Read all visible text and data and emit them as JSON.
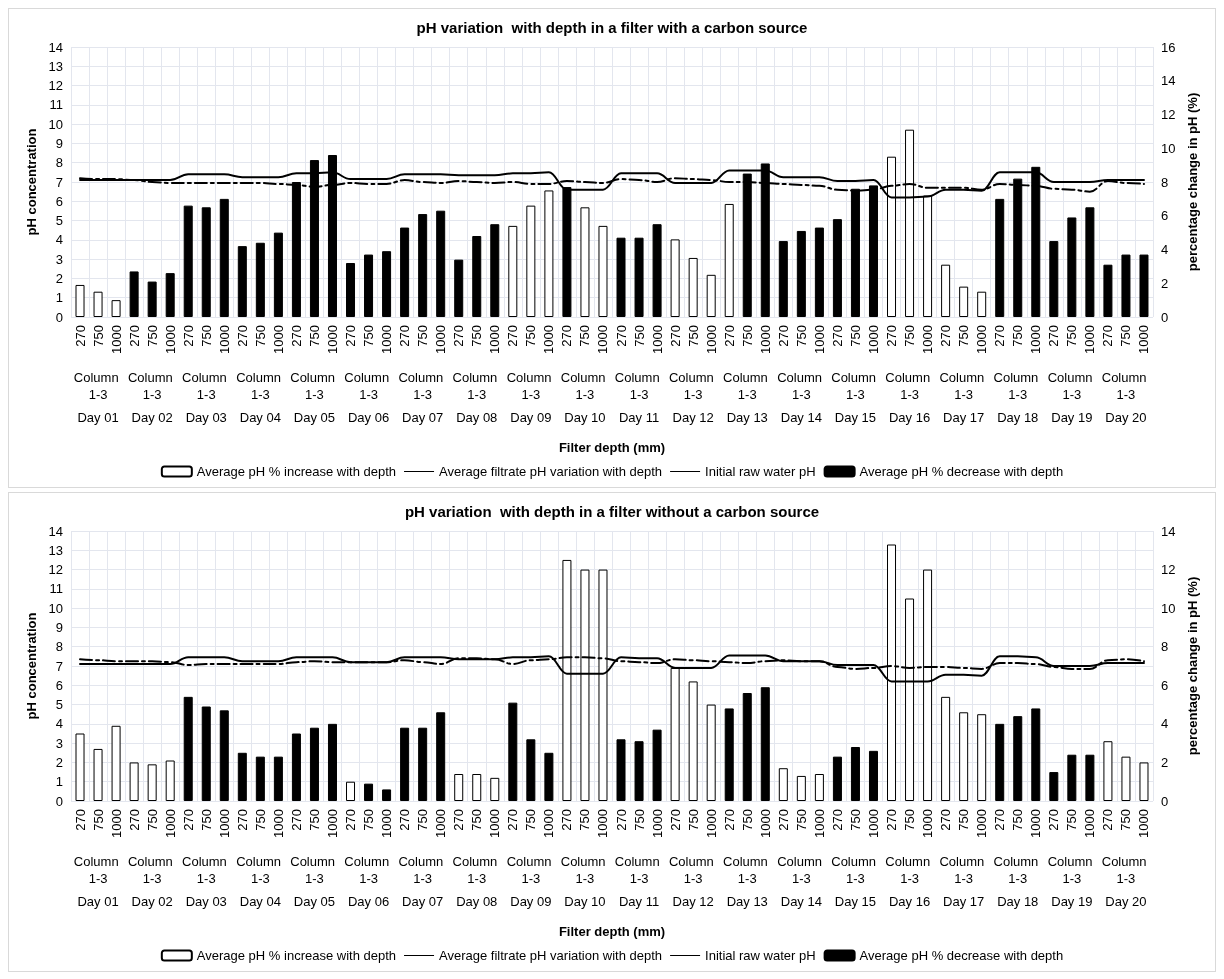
{
  "chart_data": [
    {
      "type": "bar",
      "title": "pH variation  with depth in a filter with a carbon source",
      "xlabel": "Filter depth (mm)",
      "ylabel": "pH concentration",
      "y2label": "percentage change in pH (%)",
      "categories": [
        "270",
        "750",
        "1000",
        "270",
        "750",
        "1000",
        "270",
        "750",
        "1000",
        "270",
        "750",
        "1000",
        "270",
        "750",
        "1000",
        "270",
        "750",
        "1000",
        "270",
        "750",
        "1000",
        "270",
        "750",
        "1000",
        "270",
        "750",
        "1000",
        "270",
        "750",
        "1000",
        "270",
        "750",
        "1000",
        "270",
        "750",
        "1000",
        "270",
        "750",
        "1000",
        "270",
        "750",
        "1000",
        "270",
        "750",
        "1000",
        "270",
        "750",
        "1000",
        "270",
        "750",
        "1000",
        "270",
        "750",
        "1000",
        "270",
        "750",
        "1000",
        "270",
        "750",
        "1000"
      ],
      "annotations": [
        "Column 1-3",
        "Column 1-3",
        "Column 1-3",
        "Column 1-3",
        "Column 1-3",
        "Column 1-3",
        "Column 1-3",
        "Column 1-3",
        "Column 1-3",
        "Column 1-3",
        "Column 1-3",
        "Column 1-3",
        "Column 1-3",
        "Column 1-3",
        "Column 1-3",
        "Column 1-3",
        "Column 1-3",
        "Column 1-3",
        "Column 1-3",
        "Column 1-3",
        "Day 01",
        "Day 02",
        "Day 03",
        "Day 04",
        "Day 05",
        "Day 06",
        "Day 07",
        "Day 08",
        "Day 09",
        "Day 10",
        "Day 11",
        "Day 12",
        "Day 13",
        "Day 14",
        "Day 15",
        "Day 16",
        "Day 17",
        "Day 18",
        "Day 19",
        "Day 20"
      ],
      "series": [
        {
          "name": "Average pH % increase with depth",
          "type": "bar",
          "axis": "y2",
          "color": "#ffffff",
          "values": [
            1.9,
            1.5,
            1.0,
            null,
            null,
            null,
            null,
            null,
            null,
            null,
            null,
            null,
            null,
            null,
            null,
            null,
            null,
            null,
            null,
            null,
            null,
            null,
            null,
            null,
            5.4,
            6.6,
            7.5,
            null,
            6.5,
            5.4,
            null,
            null,
            null,
            4.6,
            3.5,
            2.5,
            6.7,
            null,
            null,
            null,
            null,
            null,
            null,
            null,
            null,
            9.5,
            11.1,
            7.2,
            3.1,
            1.8,
            1.5,
            null,
            null,
            null,
            null,
            null,
            null,
            null,
            null,
            null
          ]
        },
        {
          "name": "Average filtrate pH variation with depth",
          "type": "line",
          "line_style": "dashed",
          "color": "#000000",
          "values": [
            7.2,
            7.15,
            7.15,
            7.1,
            7.0,
            6.95,
            6.95,
            6.95,
            6.95,
            6.95,
            6.95,
            6.9,
            6.85,
            6.75,
            6.85,
            6.95,
            6.9,
            6.9,
            7.1,
            7.0,
            6.95,
            7.05,
            7.0,
            6.95,
            7.0,
            6.9,
            6.9,
            7.05,
            7.0,
            6.95,
            7.15,
            7.1,
            7.0,
            7.2,
            7.15,
            7.1,
            7.0,
            7.0,
            6.95,
            6.9,
            6.85,
            6.8,
            6.6,
            6.55,
            6.6,
            6.8,
            6.9,
            6.7,
            6.7,
            6.7,
            6.6,
            6.9,
            6.85,
            6.8,
            6.65,
            6.6,
            6.5,
            7.05,
            6.95,
            6.9
          ]
        },
        {
          "name": "Initial raw water pH",
          "type": "line",
          "line_style": "solid",
          "color": "#000000",
          "values": [
            7.1,
            7.1,
            7.1,
            7.1,
            7.1,
            7.1,
            7.4,
            7.4,
            7.4,
            7.25,
            7.25,
            7.25,
            7.45,
            7.45,
            7.5,
            7.15,
            7.15,
            7.15,
            7.4,
            7.4,
            7.4,
            7.35,
            7.35,
            7.35,
            7.45,
            7.45,
            7.5,
            6.6,
            6.6,
            6.6,
            7.45,
            7.45,
            7.45,
            6.95,
            6.95,
            6.95,
            7.6,
            7.6,
            7.6,
            7.25,
            7.25,
            7.25,
            7.05,
            7.05,
            7.1,
            6.2,
            6.2,
            6.25,
            6.6,
            6.6,
            6.55,
            7.5,
            7.5,
            7.5,
            7.0,
            7.0,
            7.0,
            7.1,
            7.1,
            7.1
          ]
        },
        {
          "name": "Average pH % decrease with depth",
          "type": "bar",
          "axis": "y2",
          "color": "#000000",
          "values": [
            null,
            null,
            null,
            2.7,
            2.1,
            2.6,
            6.6,
            6.5,
            7.0,
            4.2,
            4.4,
            5.0,
            8.0,
            9.3,
            9.6,
            3.2,
            3.7,
            3.9,
            5.3,
            6.1,
            6.3,
            3.4,
            4.8,
            5.5,
            null,
            null,
            null,
            7.7,
            null,
            null,
            4.7,
            4.7,
            5.5,
            null,
            null,
            null,
            null,
            8.5,
            9.1,
            4.5,
            5.1,
            5.3,
            5.8,
            7.6,
            7.8,
            null,
            null,
            null,
            null,
            null,
            null,
            7.0,
            8.2,
            8.9,
            4.5,
            5.9,
            6.5,
            3.1,
            3.7,
            3.7
          ]
        }
      ],
      "ylim": [
        0,
        14
      ],
      "yticks": [
        0,
        1,
        2,
        3,
        4,
        5,
        6,
        7,
        8,
        9,
        10,
        11,
        12,
        13,
        14
      ],
      "y2lim": [
        0,
        16
      ],
      "y2ticks": [
        0,
        2,
        4,
        6,
        8,
        10,
        12,
        14,
        16
      ],
      "grid": true,
      "legend": "bottom",
      "marker": "none"
    },
    {
      "type": "bar",
      "title": "pH variation  with depth in a filter without a carbon source",
      "xlabel": "Filter depth (mm)",
      "ylabel": "pH concentration",
      "y2label": "percentage change in pH (%)",
      "categories": [
        "270",
        "750",
        "1000",
        "270",
        "750",
        "1000",
        "270",
        "750",
        "1000",
        "270",
        "750",
        "1000",
        "270",
        "750",
        "1000",
        "270",
        "750",
        "1000",
        "270",
        "750",
        "1000",
        "270",
        "750",
        "1000",
        "270",
        "750",
        "1000",
        "270",
        "750",
        "1000",
        "270",
        "750",
        "1000",
        "270",
        "750",
        "1000",
        "270",
        "750",
        "1000",
        "270",
        "750",
        "1000",
        "270",
        "750",
        "1000",
        "270",
        "750",
        "1000",
        "270",
        "750",
        "1000",
        "270",
        "750",
        "1000",
        "270",
        "750",
        "1000",
        "270",
        "750",
        "1000"
      ],
      "annotations": [
        "Column 1-3",
        "Column 1-3",
        "Column 1-3",
        "Column 1-3",
        "Column 1-3",
        "Column 1-3",
        "Column 1-3",
        "Column 1-3",
        "Column 1-3",
        "Column 1-3",
        "Column 1-3",
        "Column 1-3",
        "Column 1-3",
        "Column 1-3",
        "Column 1-3",
        "Column 1-3",
        "Column 1-3",
        "Column 1-3",
        "Column 1-3",
        "Column 1-3",
        "Day 01",
        "Day 02",
        "Day 03",
        "Day 04",
        "Day 05",
        "Day 06",
        "Day 07",
        "Day 08",
        "Day 09",
        "Day 10",
        "Day 11",
        "Day 12",
        "Day 13",
        "Day 14",
        "Day 15",
        "Day 16",
        "Day 17",
        "Day 18",
        "Day 19",
        "Day 20"
      ],
      "series": [
        {
          "name": "Average pH % increase with depth",
          "type": "bar",
          "axis": "y2",
          "color": "#ffffff",
          "values": [
            3.5,
            2.7,
            3.9,
            2.0,
            1.9,
            2.1,
            null,
            null,
            null,
            null,
            null,
            null,
            null,
            null,
            null,
            1.0,
            null,
            null,
            null,
            null,
            null,
            1.4,
            1.4,
            1.2,
            null,
            null,
            null,
            12.5,
            12.0,
            12.0,
            null,
            null,
            null,
            6.9,
            6.2,
            5.0,
            null,
            null,
            null,
            1.7,
            1.3,
            1.4,
            null,
            null,
            null,
            13.3,
            10.5,
            12.0,
            5.4,
            4.6,
            4.5,
            null,
            null,
            null,
            null,
            null,
            null,
            3.1,
            2.3,
            2.0
          ]
        },
        {
          "name": "Average filtrate pH variation with depth",
          "type": "line",
          "line_style": "dashed",
          "color": "#000000",
          "values": [
            7.35,
            7.3,
            7.25,
            7.25,
            7.25,
            7.2,
            7.05,
            7.1,
            7.1,
            7.1,
            7.1,
            7.1,
            7.2,
            7.25,
            7.2,
            7.2,
            7.2,
            7.2,
            7.3,
            7.2,
            7.1,
            7.4,
            7.4,
            7.35,
            7.1,
            7.3,
            7.35,
            7.45,
            7.45,
            7.4,
            7.25,
            7.2,
            7.15,
            7.35,
            7.3,
            7.25,
            7.2,
            7.15,
            7.25,
            7.3,
            7.25,
            7.25,
            6.95,
            6.85,
            6.9,
            7.0,
            6.9,
            6.95,
            6.95,
            6.9,
            6.85,
            7.15,
            7.15,
            7.1,
            6.95,
            6.85,
            6.85,
            7.3,
            7.35,
            7.25
          ]
        },
        {
          "name": "Initial raw water pH",
          "type": "line",
          "line_style": "solid",
          "color": "#000000",
          "values": [
            7.1,
            7.1,
            7.1,
            7.1,
            7.1,
            7.1,
            7.45,
            7.45,
            7.45,
            7.25,
            7.25,
            7.25,
            7.45,
            7.45,
            7.45,
            7.2,
            7.2,
            7.2,
            7.45,
            7.45,
            7.45,
            7.35,
            7.35,
            7.35,
            7.45,
            7.45,
            7.5,
            6.6,
            6.6,
            6.6,
            7.45,
            7.4,
            7.4,
            6.9,
            6.9,
            6.9,
            7.55,
            7.55,
            7.55,
            7.25,
            7.25,
            7.25,
            7.05,
            7.05,
            7.05,
            6.2,
            6.2,
            6.2,
            6.55,
            6.55,
            6.5,
            7.5,
            7.5,
            7.45,
            7.0,
            7.0,
            7.0,
            7.15,
            7.15,
            7.15
          ]
        },
        {
          "name": "Average pH % decrease with depth",
          "type": "bar",
          "axis": "y2",
          "color": "#000000",
          "values": [
            null,
            null,
            null,
            null,
            null,
            null,
            5.4,
            4.9,
            4.7,
            2.5,
            2.3,
            2.3,
            3.5,
            3.8,
            4.0,
            null,
            0.9,
            0.6,
            3.8,
            3.8,
            4.6,
            null,
            null,
            null,
            5.1,
            3.2,
            2.5,
            null,
            null,
            null,
            3.2,
            3.1,
            3.7,
            null,
            null,
            null,
            4.8,
            5.6,
            5.9,
            null,
            null,
            null,
            2.3,
            2.8,
            2.6,
            null,
            null,
            null,
            null,
            null,
            null,
            4.0,
            4.4,
            4.8,
            1.5,
            2.4,
            2.4,
            null,
            null,
            null
          ]
        }
      ],
      "ylim": [
        0,
        14
      ],
      "yticks": [
        0,
        1,
        2,
        3,
        4,
        5,
        6,
        7,
        8,
        9,
        10,
        11,
        12,
        13,
        14
      ],
      "y2lim": [
        0,
        14
      ],
      "y2ticks": [
        0,
        2,
        4,
        6,
        8,
        10,
        12,
        14
      ],
      "grid": true,
      "legend": "bottom",
      "marker": "none"
    }
  ]
}
